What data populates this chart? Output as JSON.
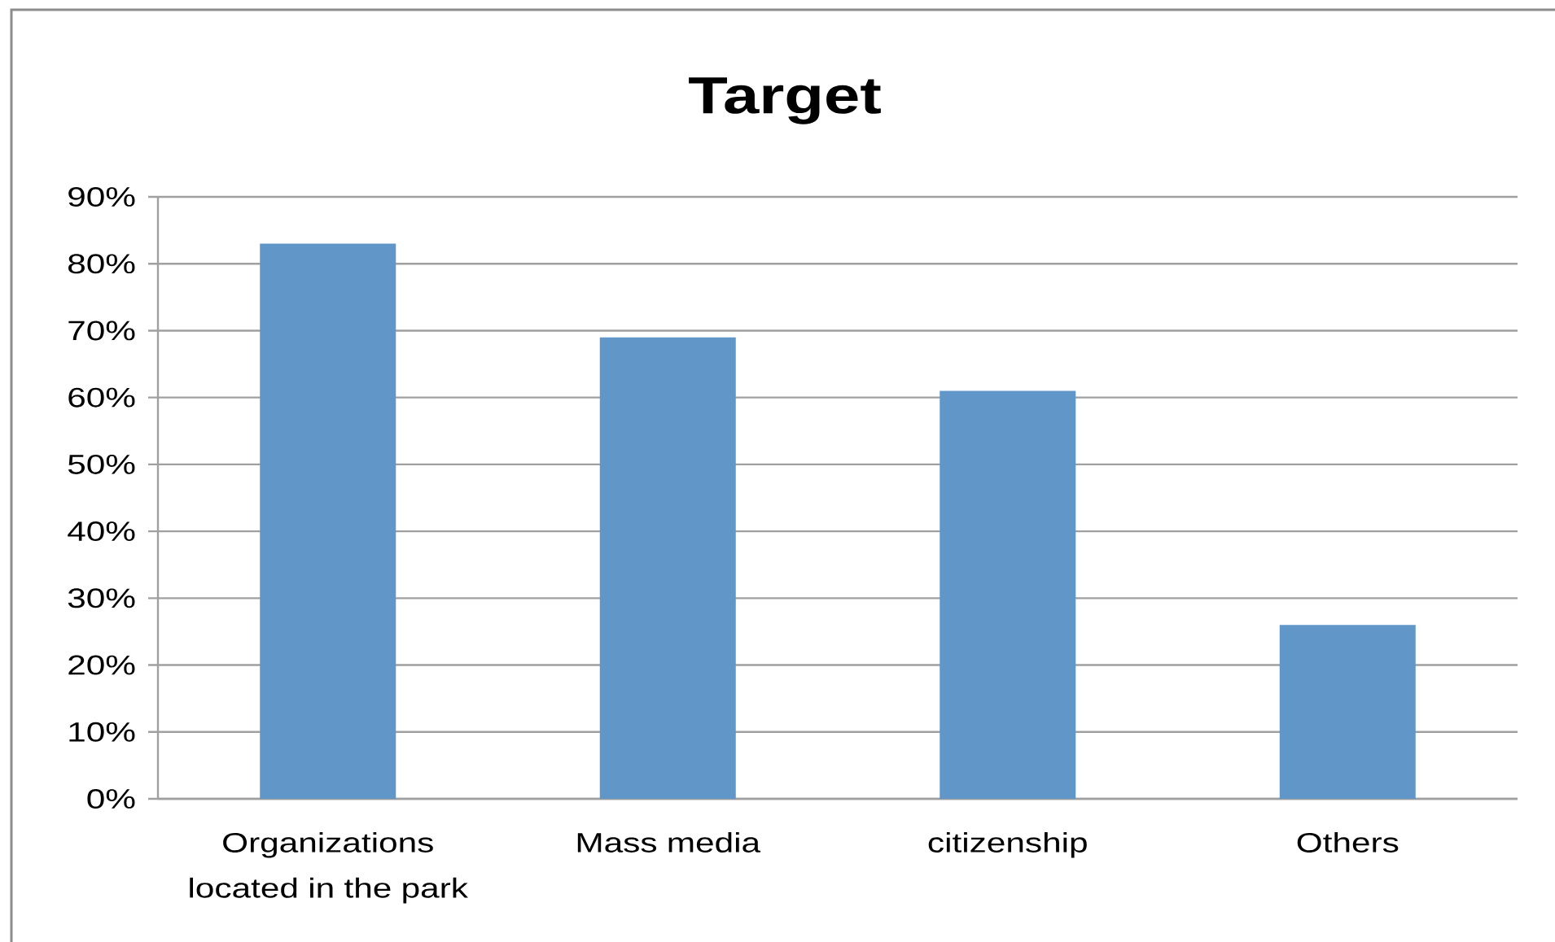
{
  "chart_data": {
    "type": "bar",
    "title": "Target",
    "categories": [
      "Organizations located in the park",
      "Mass media",
      "citizenship",
      "Others"
    ],
    "values": [
      83,
      69,
      61,
      26
    ],
    "color": "#6196c9",
    "ylim": [
      0,
      90
    ],
    "yticks": [
      {
        "value": 0,
        "label": "0%"
      },
      {
        "value": 10,
        "label": "10%"
      },
      {
        "value": 20,
        "label": "20%"
      },
      {
        "value": 30,
        "label": "30%"
      },
      {
        "value": 40,
        "label": "40%"
      },
      {
        "value": 50,
        "label": "50%"
      },
      {
        "value": 60,
        "label": "60%"
      },
      {
        "value": 70,
        "label": "70%"
      },
      {
        "value": 80,
        "label": "80%"
      },
      {
        "value": 90,
        "label": "90%"
      }
    ],
    "grid": "y"
  }
}
